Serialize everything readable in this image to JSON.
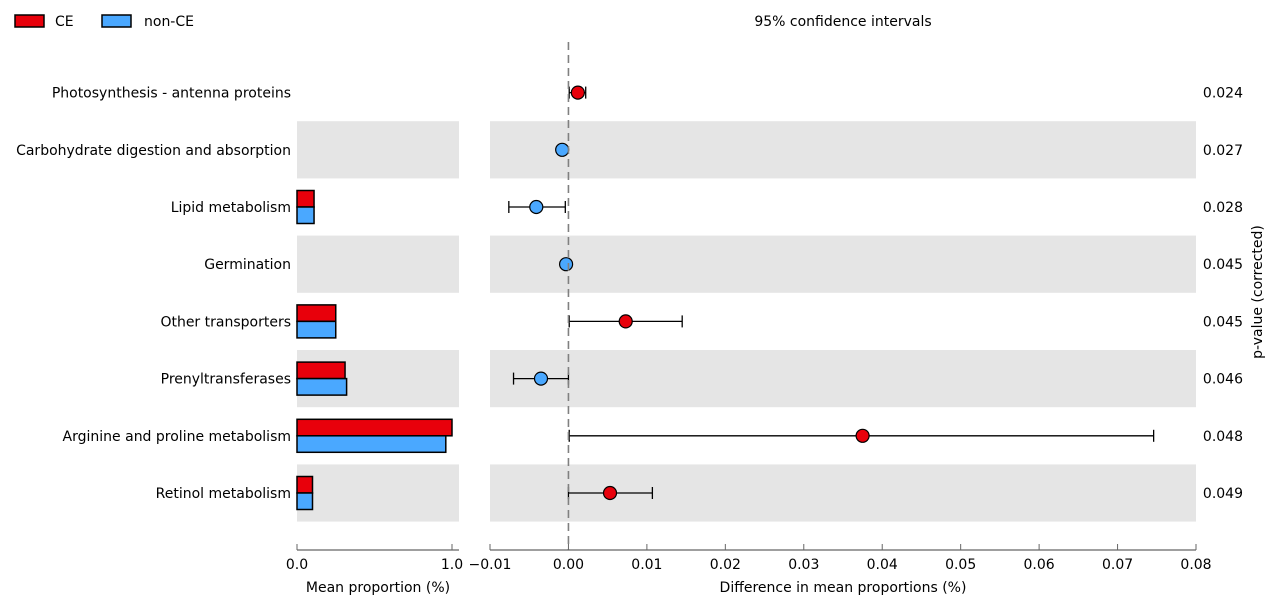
{
  "chart_data": [
    {
      "type": "bar",
      "categories": [
        "Photosynthesis - antenna proteins",
        "Carbohydrate digestion and absorption",
        "Lipid metabolism",
        "Germination",
        "Other transporters",
        "Prenyltransferases",
        "Arginine and proline metabolism",
        "Retinol metabolism"
      ],
      "series": [
        {
          "name": "CE",
          "color": "#e8000b",
          "values": [
            0.0,
            0.0,
            0.11,
            0.0,
            0.25,
            0.31,
            1.0,
            0.1
          ]
        },
        {
          "name": "non-CE",
          "color": "#4aa8ff",
          "values": [
            0.0,
            0.0,
            0.11,
            0.0,
            0.25,
            0.32,
            0.96,
            0.1
          ]
        }
      ],
      "xlabel": "Mean proportion (%)",
      "xlim": [
        0.0,
        1.0
      ],
      "xticks": [
        "0.0",
        "1.0"
      ],
      "legend": "top-left"
    },
    {
      "type": "scatter",
      "title": "95% confidence intervals",
      "xlabel": "Difference in mean proportions (%)",
      "right_label": "p-value (corrected)",
      "xlim": [
        -0.01,
        0.08
      ],
      "xticks": [
        "−0.01",
        "0.00",
        "0.01",
        "0.02",
        "0.03",
        "0.04",
        "0.05",
        "0.06",
        "0.07",
        "0.08"
      ],
      "reference_line": 0,
      "points": [
        {
          "category": "Photosynthesis - antenna proteins",
          "diff": 0.0012,
          "low": 0.0001,
          "high": 0.0022,
          "group": "CE",
          "p_value": "0.024"
        },
        {
          "category": "Carbohydrate digestion and absorption",
          "diff": -0.0008,
          "low": -0.0008,
          "high": -0.0008,
          "group": "non-CE",
          "p_value": "0.027"
        },
        {
          "category": "Lipid metabolism",
          "diff": -0.0041,
          "low": -0.0076,
          "high": -0.0004,
          "group": "non-CE",
          "p_value": "0.028"
        },
        {
          "category": "Germination",
          "diff": -0.0003,
          "low": -0.0003,
          "high": -0.0003,
          "group": "non-CE",
          "p_value": "0.045"
        },
        {
          "category": "Other transporters",
          "diff": 0.0073,
          "low": 0.0001,
          "high": 0.0145,
          "group": "CE",
          "p_value": "0.045"
        },
        {
          "category": "Prenyltransferases",
          "diff": -0.0035,
          "low": -0.007,
          "high": 0.0,
          "group": "non-CE",
          "p_value": "0.046"
        },
        {
          "category": "Arginine and proline metabolism",
          "diff": 0.0375,
          "low": 0.0001,
          "high": 0.0746,
          "group": "CE",
          "p_value": "0.048"
        },
        {
          "category": "Retinol metabolism",
          "diff": 0.0053,
          "low": 0.0,
          "high": 0.0107,
          "group": "CE",
          "p_value": "0.049"
        }
      ]
    }
  ]
}
